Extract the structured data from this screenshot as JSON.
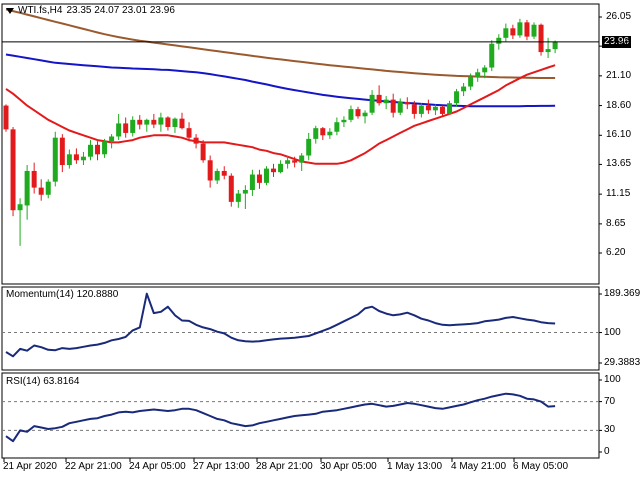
{
  "header": {
    "symbol": "WTI.fs,H4",
    "ohlc": "23.35 24.07 23.01 23.96"
  },
  "price_badge": "23.96",
  "momentum_label": "Momentum(14) 120.8880",
  "rsi_label": "RSI(14) 63.8164",
  "colors": {
    "bull": "#1faa1f",
    "bear": "#e31a1c",
    "ma_fast": "#e31a1c",
    "ma_mid": "#1414c8",
    "ma_slow": "#9a5a2e",
    "indicator": "#1a2a7a",
    "grid_dash": "#7a7a7a"
  },
  "chart_data": [
    {
      "type": "candlestick",
      "name": "price",
      "y_ticks": [
        26.05,
        23.6,
        21.1,
        18.6,
        16.1,
        13.65,
        11.15,
        8.65,
        6.2
      ],
      "ylim": [
        6.2,
        26.05
      ],
      "current_price": 23.96,
      "x_tick_labels": [
        "21 Apr 2020",
        "22 Apr 21:00",
        "24 Apr 05:00",
        "27 Apr 13:00",
        "28 Apr 21:00",
        "30 Apr 05:00",
        "1 May 13:00",
        "4 May 21:00",
        "6 May 05:00"
      ],
      "candles": [
        [
          18.6,
          18.7,
          16.4,
          16.6
        ],
        [
          16.6,
          16.8,
          9.3,
          9.8
        ],
        [
          9.8,
          10.8,
          6.8,
          10.3
        ],
        [
          10.2,
          13.6,
          9.0,
          13.1
        ],
        [
          13.1,
          13.8,
          11.2,
          11.7
        ],
        [
          11.7,
          12.4,
          10.6,
          11.1
        ],
        [
          11.1,
          12.4,
          10.8,
          12.2
        ],
        [
          12.2,
          16.4,
          11.8,
          15.9
        ],
        [
          15.9,
          16.2,
          13.0,
          13.6
        ],
        [
          13.6,
          14.9,
          13.3,
          14.5
        ],
        [
          14.5,
          15.0,
          13.7,
          14.0
        ],
        [
          14.0,
          14.7,
          13.6,
          14.3
        ],
        [
          14.3,
          15.7,
          14.0,
          15.3
        ],
        [
          15.3,
          15.6,
          14.0,
          14.5
        ],
        [
          14.5,
          15.8,
          14.2,
          15.6
        ],
        [
          15.6,
          16.2,
          15.0,
          16.0
        ],
        [
          16.0,
          17.9,
          15.7,
          17.1
        ],
        [
          17.1,
          17.6,
          15.9,
          16.3
        ],
        [
          16.3,
          17.7,
          16.0,
          17.4
        ],
        [
          17.4,
          17.8,
          16.6,
          17.0
        ],
        [
          17.0,
          17.5,
          16.4,
          17.4
        ],
        [
          17.4,
          17.9,
          16.7,
          17.0
        ],
        [
          17.0,
          18.0,
          16.4,
          17.6
        ],
        [
          17.6,
          17.7,
          16.5,
          16.8
        ],
        [
          16.8,
          17.6,
          16.3,
          17.5
        ],
        [
          17.5,
          18.0,
          16.6,
          16.7
        ],
        [
          16.7,
          17.2,
          15.6,
          15.9
        ],
        [
          15.9,
          16.2,
          15.0,
          15.4
        ],
        [
          15.4,
          15.7,
          13.8,
          14.0
        ],
        [
          14.0,
          14.4,
          11.7,
          12.3
        ],
        [
          12.3,
          13.3,
          12.0,
          13.1
        ],
        [
          13.1,
          13.5,
          12.4,
          12.7
        ],
        [
          12.7,
          12.9,
          10.1,
          10.5
        ],
        [
          10.5,
          11.5,
          10.0,
          11.2
        ],
        [
          11.2,
          11.9,
          9.9,
          11.5
        ],
        [
          11.5,
          13.2,
          11.0,
          12.8
        ],
        [
          12.8,
          13.2,
          11.6,
          12.1
        ],
        [
          12.1,
          13.5,
          11.9,
          13.3
        ],
        [
          13.3,
          13.7,
          12.6,
          13.0
        ],
        [
          13.0,
          14.0,
          12.9,
          13.7
        ],
        [
          13.7,
          14.4,
          13.3,
          14.0
        ],
        [
          14.0,
          14.3,
          13.4,
          13.8
        ],
        [
          13.8,
          14.6,
          13.1,
          14.4
        ],
        [
          14.4,
          16.3,
          14.0,
          15.8
        ],
        [
          15.8,
          16.9,
          15.4,
          16.7
        ],
        [
          16.7,
          16.8,
          15.7,
          16.1
        ],
        [
          16.1,
          16.7,
          15.8,
          16.4
        ],
        [
          16.4,
          17.6,
          16.1,
          17.2
        ],
        [
          17.2,
          17.7,
          16.8,
          17.4
        ],
        [
          17.4,
          18.6,
          17.2,
          18.3
        ],
        [
          18.3,
          18.5,
          17.5,
          17.7
        ],
        [
          17.7,
          18.2,
          17.1,
          18.0
        ],
        [
          18.0,
          19.9,
          17.8,
          19.5
        ],
        [
          19.5,
          20.3,
          18.6,
          18.8
        ],
        [
          18.8,
          19.4,
          18.3,
          19.1
        ],
        [
          19.1,
          19.6,
          17.6,
          18.0
        ],
        [
          18.0,
          19.2,
          17.8,
          18.9
        ],
        [
          18.9,
          19.3,
          18.3,
          18.7
        ],
        [
          18.7,
          19.0,
          17.5,
          17.9
        ],
        [
          17.9,
          18.8,
          17.6,
          18.6
        ],
        [
          18.6,
          19.1,
          17.9,
          18.2
        ],
        [
          18.2,
          18.7,
          17.8,
          18.5
        ],
        [
          18.5,
          18.6,
          17.7,
          17.9
        ],
        [
          17.9,
          19.0,
          17.8,
          18.8
        ],
        [
          18.8,
          20.0,
          18.5,
          19.8
        ],
        [
          19.8,
          20.5,
          19.4,
          20.2
        ],
        [
          20.2,
          21.3,
          19.9,
          21.0
        ],
        [
          21.0,
          21.7,
          20.6,
          21.4
        ],
        [
          21.4,
          22.0,
          20.9,
          21.8
        ],
        [
          21.8,
          24.1,
          21.5,
          23.8
        ],
        [
          23.8,
          24.6,
          23.3,
          24.3
        ],
        [
          24.3,
          25.5,
          24.0,
          25.1
        ],
        [
          25.1,
          25.4,
          24.2,
          24.5
        ],
        [
          24.5,
          25.9,
          24.3,
          25.6
        ],
        [
          25.6,
          25.8,
          24.1,
          24.4
        ],
        [
          24.4,
          25.6,
          24.2,
          25.4
        ],
        [
          25.4,
          25.5,
          22.8,
          23.1
        ],
        [
          23.1,
          24.3,
          22.6,
          23.35
        ],
        [
          23.35,
          24.07,
          23.01,
          23.96
        ]
      ],
      "ma_fast": [
        20.0,
        19.6,
        19.1,
        18.6,
        18.2,
        17.8,
        17.4,
        17.1,
        16.8,
        16.5,
        16.3,
        16.1,
        15.9,
        15.7,
        15.6,
        15.5,
        15.5,
        15.6,
        15.7,
        15.9,
        16.0,
        16.1,
        16.1,
        16.1,
        16.0,
        15.9,
        15.7,
        15.6,
        15.5,
        15.5,
        15.5,
        15.5,
        15.4,
        15.3,
        15.2,
        15.1,
        14.9,
        14.8,
        14.6,
        14.5,
        14.3,
        14.1,
        13.9,
        13.8,
        13.7,
        13.7,
        13.7,
        13.7,
        13.8,
        14.0,
        14.3,
        14.6,
        15.0,
        15.4,
        15.7,
        16.0,
        16.3,
        16.6,
        16.9,
        17.1,
        17.3,
        17.5,
        17.7,
        17.9,
        18.1,
        18.4,
        18.7,
        19.0,
        19.3,
        19.6,
        19.9,
        20.3,
        20.6,
        20.9,
        21.2,
        21.4,
        21.6,
        21.8,
        22.0
      ],
      "ma_mid": [
        22.9,
        22.8,
        22.7,
        22.6,
        22.5,
        22.4,
        22.3,
        22.2,
        22.15,
        22.1,
        22.05,
        22.0,
        21.95,
        21.9,
        21.85,
        21.8,
        21.78,
        21.75,
        21.72,
        21.7,
        21.68,
        21.65,
        21.62,
        21.6,
        21.55,
        21.5,
        21.45,
        21.4,
        21.33,
        21.25,
        21.15,
        21.05,
        20.95,
        20.85,
        20.75,
        20.62,
        20.5,
        20.38,
        20.25,
        20.12,
        20.0,
        19.9,
        19.8,
        19.7,
        19.6,
        19.5,
        19.42,
        19.35,
        19.28,
        19.22,
        19.16,
        19.1,
        19.05,
        19.0,
        18.95,
        18.9,
        18.86,
        18.82,
        18.78,
        18.74,
        18.7,
        18.66,
        18.63,
        18.6,
        18.58,
        18.56,
        18.55,
        18.54,
        18.54,
        18.54,
        18.54,
        18.54,
        18.55,
        18.55,
        18.56,
        18.56,
        18.57,
        18.57,
        18.58
      ],
      "ma_slow": [
        26.7,
        26.55,
        26.4,
        26.25,
        26.1,
        25.95,
        25.8,
        25.65,
        25.5,
        25.35,
        25.2,
        25.05,
        24.9,
        24.75,
        24.6,
        24.48,
        24.36,
        24.25,
        24.15,
        24.06,
        23.98,
        23.9,
        23.82,
        23.74,
        23.66,
        23.58,
        23.5,
        23.42,
        23.34,
        23.26,
        23.18,
        23.1,
        23.02,
        22.94,
        22.86,
        22.78,
        22.7,
        22.62,
        22.55,
        22.48,
        22.41,
        22.34,
        22.27,
        22.2,
        22.13,
        22.06,
        22.0,
        21.94,
        21.88,
        21.82,
        21.76,
        21.7,
        21.64,
        21.58,
        21.52,
        21.47,
        21.42,
        21.37,
        21.32,
        21.28,
        21.24,
        21.2,
        21.16,
        21.13,
        21.1,
        21.08,
        21.06,
        21.04,
        21.02,
        21.0,
        20.98,
        20.97,
        20.96,
        20.95,
        20.94,
        20.93,
        20.92,
        20.92,
        20.92
      ]
    },
    {
      "type": "line",
      "name": "Momentum(14)",
      "y_ticks": [
        189.3693,
        100,
        29.3883
      ],
      "ylim": [
        29.3883,
        189.3693
      ],
      "level_line": 100,
      "values": [
        55,
        45,
        62,
        58,
        70,
        66,
        60,
        59,
        64,
        62,
        64,
        67,
        70,
        72,
        76,
        82,
        85,
        90,
        105,
        112,
        190,
        145,
        148,
        160,
        140,
        128,
        127,
        118,
        112,
        108,
        102,
        98,
        88,
        82,
        80,
        79,
        80,
        82,
        84,
        86,
        87,
        88,
        90,
        92,
        98,
        104,
        110,
        118,
        126,
        134,
        142,
        156,
        160,
        150,
        144,
        140,
        142,
        146,
        140,
        132,
        128,
        122,
        118,
        117,
        118,
        119,
        120,
        122,
        126,
        128,
        130,
        134,
        136,
        133,
        130,
        128,
        124,
        122,
        120.888
      ]
    },
    {
      "type": "line",
      "name": "RSI(14)",
      "y_ticks": [
        100,
        70,
        30,
        0
      ],
      "ylim": [
        0,
        100
      ],
      "levels": [
        70,
        30
      ],
      "values": [
        22,
        15,
        30,
        28,
        36,
        34,
        32,
        33,
        35,
        40,
        42,
        44,
        46,
        47,
        50,
        52,
        55,
        56,
        55,
        57,
        58,
        59,
        58,
        57,
        58,
        60,
        60,
        58,
        54,
        50,
        46,
        44,
        40,
        38,
        36,
        37,
        40,
        42,
        44,
        46,
        48,
        50,
        51,
        52,
        53,
        56,
        57,
        58,
        60,
        62,
        64,
        66,
        67,
        65,
        63,
        64,
        66,
        68,
        67,
        65,
        63,
        61,
        60,
        62,
        64,
        66,
        69,
        72,
        74,
        77,
        79,
        81,
        80,
        78,
        74,
        73,
        70,
        63,
        63.8164
      ]
    }
  ]
}
